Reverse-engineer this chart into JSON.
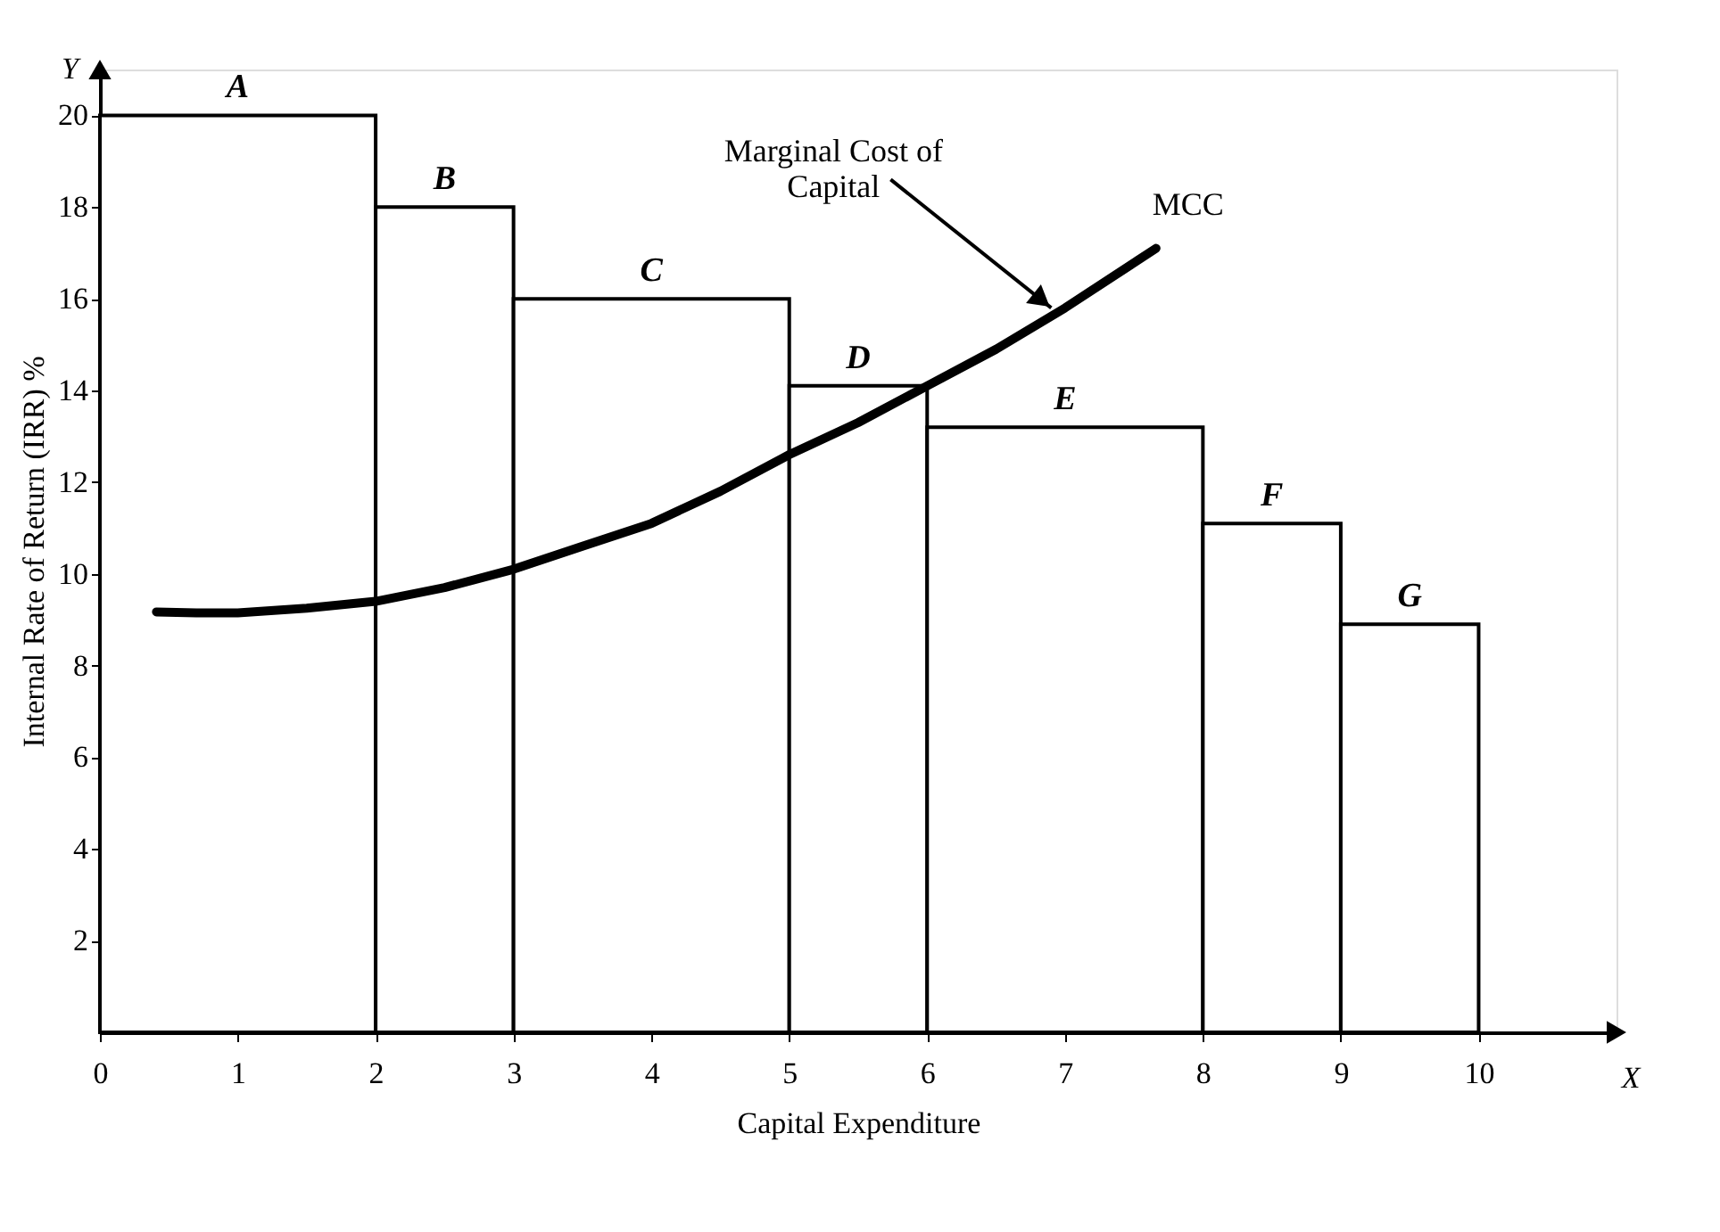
{
  "chart_data": {
    "type": "histogram",
    "xlabel": "Capital Expenditure",
    "ylabel": "Internal Rate of Return (IRR) %",
    "bins": [
      0,
      2,
      3,
      5,
      6,
      8,
      9,
      10
    ],
    "values": [
      20,
      18,
      16,
      14.1,
      13.2,
      11.1,
      8.9
    ],
    "series": [
      {
        "name": "MCC",
        "type": "line",
        "color": "#000000",
        "x": [
          0.41,
          0.7,
          1,
          1.5,
          2,
          2.5,
          3,
          3.5,
          4,
          4.5,
          5,
          5.5,
          6,
          6.5,
          7,
          7.66
        ],
        "values": [
          9.17,
          9.15,
          9.15,
          9.25,
          9.4,
          9.7,
          10.1,
          10.6,
          11.1,
          11.8,
          12.6,
          13.3,
          14.1,
          14.9,
          15.8,
          17.1
        ]
      }
    ],
    "annotations": [
      {
        "text": "A",
        "x": 1,
        "y": 20
      },
      {
        "text": "B",
        "x": 2.5,
        "y": 18
      },
      {
        "text": "C",
        "x": 4,
        "y": 16
      },
      {
        "text": "D",
        "x": 5.5,
        "y": 14.1
      },
      {
        "text": "E",
        "x": 7,
        "y": 13.2
      },
      {
        "text": "F",
        "x": 8.5,
        "y": 11.1
      },
      {
        "text": "G",
        "x": 9.5,
        "y": 8.9
      },
      {
        "text": "Marginal Cost of Capital",
        "x": 6.9,
        "y": 15.8
      },
      "Y",
      "X"
    ],
    "xlim": [
      0,
      11
    ],
    "ylim": [
      0,
      21
    ],
    "xticks": [
      0,
      1,
      2,
      3,
      4,
      5,
      6,
      7,
      8,
      9,
      10
    ],
    "yticks": [
      2,
      4,
      6,
      8,
      10,
      12,
      14,
      16,
      18,
      20
    ],
    "grid": false,
    "legend": false,
    "marker": "none",
    "line_style": "solid"
  }
}
